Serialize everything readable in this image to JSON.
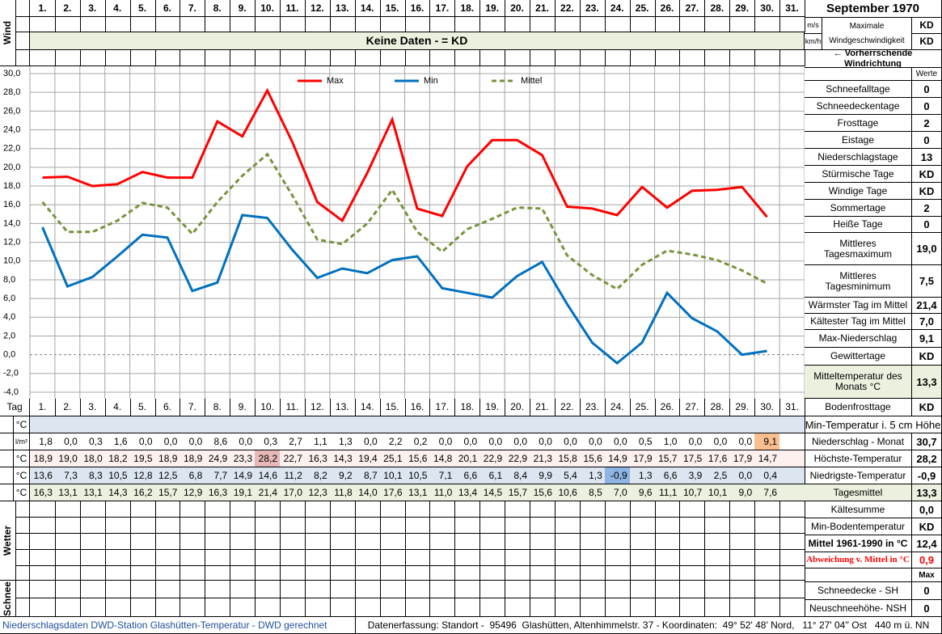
{
  "chart_data": {
    "type": "line",
    "categories": [
      "1.",
      "2.",
      "3.",
      "4.",
      "5.",
      "6.",
      "7.",
      "8.",
      "9.",
      "10.",
      "11.",
      "12.",
      "13.",
      "14.",
      "15.",
      "16.",
      "17.",
      "18.",
      "19.",
      "20.",
      "21.",
      "22.",
      "23.",
      "24.",
      "25.",
      "26.",
      "27.",
      "28.",
      "29.",
      "30.",
      "31."
    ],
    "series": [
      {
        "name": "Max",
        "color": "#ff0000",
        "line_style": "solid",
        "values": [
          18.9,
          19.0,
          18.0,
          18.2,
          19.5,
          18.9,
          18.9,
          24.9,
          23.3,
          28.2,
          22.7,
          16.3,
          14.3,
          19.4,
          25.1,
          15.6,
          14.8,
          20.1,
          22.9,
          22.9,
          21.3,
          15.8,
          15.6,
          14.9,
          17.9,
          15.7,
          17.5,
          17.6,
          17.9,
          14.7,
          null
        ],
        "value_labels": [
          "18,9",
          "19,0",
          "18,0",
          "18,2",
          "19,5",
          "18,9",
          "18,9",
          "24,9",
          "23,3",
          "28,2",
          "22,7",
          "16,3",
          "14,3",
          "19,4",
          "25,1",
          "15,6",
          "14,8",
          "20,1",
          "22,9",
          "22,9",
          "21,3",
          "15,8",
          "15,6",
          "14,9",
          "17,9",
          "15,7",
          "17,5",
          "17,6",
          "17,9",
          "14,7",
          null
        ]
      },
      {
        "name": "Min",
        "color": "#0070c0",
        "line_style": "solid",
        "values": [
          13.6,
          7.3,
          8.3,
          10.5,
          12.8,
          12.5,
          6.8,
          7.7,
          14.9,
          14.6,
          11.2,
          8.2,
          9.2,
          8.7,
          10.1,
          10.5,
          7.1,
          6.6,
          6.1,
          8.4,
          9.9,
          5.4,
          1.3,
          -0.9,
          1.3,
          6.6,
          3.9,
          2.5,
          0.0,
          0.4,
          null
        ],
        "value_labels": [
          "13,6",
          "7,3",
          "8,3",
          "10,5",
          "12,8",
          "12,5",
          "6,8",
          "7,7",
          "14,9",
          "14,6",
          "11,2",
          "8,2",
          "9,2",
          "8,7",
          "10,1",
          "10,5",
          "7,1",
          "6,6",
          "6,1",
          "8,4",
          "9,9",
          "5,4",
          "1,3",
          "-0,9",
          "1,3",
          "6,6",
          "3,9",
          "2,5",
          "0,0",
          "0,4",
          null
        ]
      },
      {
        "name": "Mittel",
        "color": "#77933c",
        "line_style": "dashed",
        "values": [
          16.3,
          13.1,
          13.1,
          14.3,
          16.2,
          15.7,
          12.9,
          16.3,
          19.1,
          21.4,
          17.0,
          12.3,
          11.8,
          14.0,
          17.6,
          13.1,
          11.0,
          13.4,
          14.5,
          15.7,
          15.6,
          10.6,
          8.5,
          7.0,
          9.6,
          11.1,
          10.7,
          10.1,
          9.0,
          7.6,
          null
        ],
        "value_labels": [
          "16,3",
          "13,1",
          "13,1",
          "14,3",
          "16,2",
          "15,7",
          "12,9",
          "16,3",
          "19,1",
          "21,4",
          "17,0",
          "12,3",
          "11,8",
          "14,0",
          "17,6",
          "13,1",
          "11,0",
          "13,4",
          "14,5",
          "15,7",
          "15,6",
          "10,6",
          "8,5",
          "7,0",
          "9,6",
          "11,1",
          "10,7",
          "10,1",
          "9,0",
          "7,6",
          null
        ]
      }
    ],
    "ylim": [
      -4,
      30
    ],
    "yticks": [
      {
        "value": -4,
        "label": "-4,0"
      },
      {
        "value": -2,
        "label": "-2,0"
      },
      {
        "value": 0,
        "label": "0,0"
      },
      {
        "value": 2,
        "label": "2,0"
      },
      {
        "value": 4,
        "label": "4,0"
      },
      {
        "value": 6,
        "label": "6,0"
      },
      {
        "value": 8,
        "label": "8,0"
      },
      {
        "value": 10,
        "label": "10,0"
      },
      {
        "value": 12,
        "label": "12,0"
      },
      {
        "value": 14,
        "label": "14,0"
      },
      {
        "value": 16,
        "label": "16,0"
      },
      {
        "value": 18,
        "label": "18,0"
      },
      {
        "value": 20,
        "label": "20,0"
      },
      {
        "value": 22,
        "label": "22,0"
      },
      {
        "value": 24,
        "label": "24,0"
      },
      {
        "value": 26,
        "label": "26,0"
      },
      {
        "value": 28,
        "label": "28,0"
      },
      {
        "value": 30,
        "label": "30,0"
      }
    ],
    "grid": true
  },
  "header": {
    "month": "September 1970",
    "wind_label": "Wind",
    "no_data": "Keine Daten -  = KD",
    "wind_title": "Maximale Windgeschwindigkeit",
    "wind_rows": [
      {
        "unit": "m/s",
        "value": "KD"
      },
      {
        "unit": "km/h",
        "value": "KD"
      }
    ],
    "direction": "← Vorherrschende Windrichtung",
    "values_header": "Werte"
  },
  "table": {
    "day_label": "Tag",
    "units": [
      "°C",
      "l/m²",
      "°C",
      "°C",
      "°C"
    ],
    "precipitation": [
      "1,8",
      "0,0",
      "0,3",
      "1,6",
      "0,0",
      "0,0",
      "0,0",
      "8,6",
      "0,0",
      "0,3",
      "2,7",
      "1,1",
      "1,3",
      "0,0",
      "2,2",
      "0,2",
      "0,0",
      "0,0",
      "0,0",
      "0,0",
      "0,0",
      "0,0",
      "0,0",
      "0,0",
      "0,5",
      "1,0",
      "0,0",
      "0,0",
      "0,0",
      "9,1"
    ],
    "weather_label": "Wetter",
    "snow_label": "Schnee"
  },
  "stats": [
    {
      "label": "Schneefalltage",
      "value": "0"
    },
    {
      "label": "Schneedeckentage",
      "value": "0"
    },
    {
      "label": "Frosttage",
      "value": "2"
    },
    {
      "label": "Eistage",
      "value": "0"
    },
    {
      "label": "Niederschlagstage",
      "value": "13"
    },
    {
      "label": "Stürmische Tage",
      "value": "KD"
    },
    {
      "label": "Windige Tage",
      "value": "KD"
    },
    {
      "label": "Sommertage",
      "value": "2"
    },
    {
      "label": "Heiße Tage",
      "value": "0"
    },
    {
      "label": "Mittleres Tagesmaximum",
      "value": "19,0"
    },
    {
      "label": "Mittleres Tagesminimum",
      "value": "7,5"
    },
    {
      "label": "Wärmster Tag im Mittel",
      "value": "21,4"
    },
    {
      "label": "Kältester Tag im Mittel",
      "value": "7,0"
    },
    {
      "label": "Max-Niederschlag",
      "value": "9,1"
    },
    {
      "label": "Gewittertage",
      "value": "KD"
    },
    {
      "label": "Mitteltemperatur des Monats °C",
      "value": "13,3"
    },
    {
      "label": "Bodenfrosttage",
      "value": "KD"
    },
    {
      "label": "Min-Temperatur i. 5 cm Höhe"
    },
    {
      "label": "Niederschlag - Monat",
      "value": "30,7"
    },
    {
      "label": "Höchste-Temperatur",
      "value": "28,2"
    },
    {
      "label": "Niedrigste-Temperatur",
      "value": "-0,9"
    },
    {
      "label": "Tagesmittel",
      "value": "13,3"
    },
    {
      "label": "Kältesumme",
      "value": "0,0"
    },
    {
      "label": "Min-Bodentemperatur",
      "value": "KD"
    },
    {
      "label": "Mittel 1961-1990 in °C",
      "value": "12,4"
    },
    {
      "label": "Abweichung v. Mittel in °C",
      "value": "0,9"
    },
    {
      "value": "Max"
    },
    {
      "label": "Schneedecke -   SH",
      "value": "0"
    },
    {
      "label": "Neuschneehöhe- NSH",
      "value": "0"
    }
  ],
  "footer": {
    "left": "Niederschlagsdaten DWD-Station Glashütten-Temperatur -  DWD gerechnet",
    "right": "Datenerfassung: Standort -  95496  Glashütten, Altenhimmelstr. 37 - Koordinaten:  49° 52' 48' Nord,   11° 27' 04'' Ost   440 m ü. NN"
  }
}
